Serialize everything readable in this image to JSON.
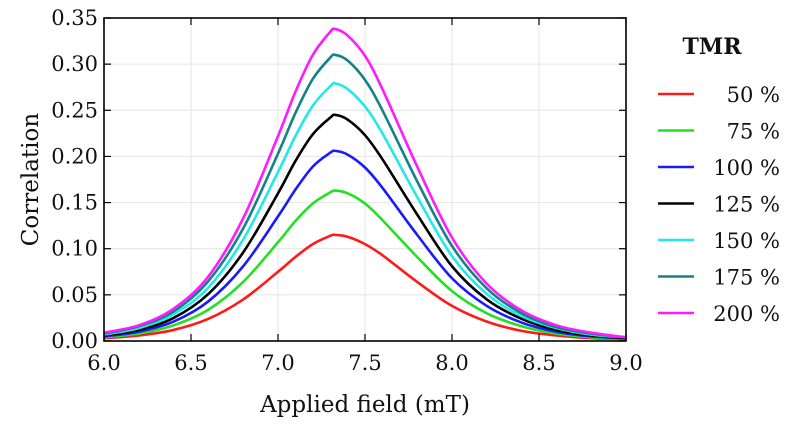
{
  "chart_data": {
    "type": "line",
    "xlabel": "Applied field (mT)",
    "ylabel": "Correlation",
    "xlim": [
      6.0,
      9.0
    ],
    "ylim": [
      0.0,
      0.35
    ],
    "xticks": [
      6.0,
      6.5,
      7.0,
      7.5,
      8.0,
      8.5,
      9.0
    ],
    "xtick_labels": [
      "6.0",
      "6.5",
      "7.0",
      "7.5",
      "8.0",
      "8.5",
      "9.0"
    ],
    "yticks": [
      0.0,
      0.05,
      0.1,
      0.15,
      0.2,
      0.25,
      0.3,
      0.35
    ],
    "ytick_labels": [
      "0.00",
      "0.05",
      "0.10",
      "0.15",
      "0.20",
      "0.25",
      "0.30",
      "0.35"
    ],
    "grid": true,
    "legend_title": "TMR",
    "legend_position": "right",
    "x": [
      6.0,
      6.2,
      6.4,
      6.6,
      6.8,
      7.0,
      7.1,
      7.2,
      7.3,
      7.33,
      7.4,
      7.5,
      7.6,
      7.8,
      8.0,
      8.2,
      8.4,
      8.6,
      8.8,
      9.0
    ],
    "series": [
      {
        "name": "50 %",
        "color": "#ff1a1a",
        "values": [
          0.003,
          0.006,
          0.012,
          0.024,
          0.045,
          0.075,
          0.091,
          0.105,
          0.114,
          0.115,
          0.113,
          0.105,
          0.093,
          0.064,
          0.038,
          0.021,
          0.011,
          0.006,
          0.003,
          0.002
        ]
      },
      {
        "name": "75 %",
        "color": "#22e022",
        "values": [
          0.004,
          0.008,
          0.017,
          0.034,
          0.064,
          0.107,
          0.13,
          0.149,
          0.161,
          0.163,
          0.16,
          0.149,
          0.131,
          0.091,
          0.054,
          0.03,
          0.016,
          0.008,
          0.004,
          0.002
        ]
      },
      {
        "name": "100 %",
        "color": "#1a1aff",
        "values": [
          0.005,
          0.01,
          0.021,
          0.043,
          0.081,
          0.135,
          0.164,
          0.189,
          0.204,
          0.206,
          0.202,
          0.188,
          0.166,
          0.115,
          0.068,
          0.038,
          0.02,
          0.01,
          0.005,
          0.003
        ]
      },
      {
        "name": "125 %",
        "color": "#000000",
        "values": [
          0.006,
          0.012,
          0.025,
          0.051,
          0.096,
          0.16,
          0.195,
          0.224,
          0.242,
          0.245,
          0.24,
          0.223,
          0.197,
          0.137,
          0.081,
          0.045,
          0.024,
          0.012,
          0.006,
          0.003
        ]
      },
      {
        "name": "150 %",
        "color": "#22e8e8",
        "values": [
          0.007,
          0.014,
          0.029,
          0.058,
          0.11,
          0.183,
          0.222,
          0.255,
          0.276,
          0.279,
          0.273,
          0.254,
          0.225,
          0.156,
          0.092,
          0.051,
          0.027,
          0.014,
          0.007,
          0.004
        ]
      },
      {
        "name": "175 %",
        "color": "#138383",
        "values": [
          0.008,
          0.016,
          0.032,
          0.065,
          0.122,
          0.203,
          0.247,
          0.284,
          0.307,
          0.31,
          0.304,
          0.283,
          0.25,
          0.173,
          0.103,
          0.057,
          0.03,
          0.015,
          0.008,
          0.004
        ]
      },
      {
        "name": "200 %",
        "color": "#ff1aff",
        "values": [
          0.009,
          0.017,
          0.035,
          0.07,
          0.133,
          0.222,
          0.27,
          0.31,
          0.335,
          0.338,
          0.331,
          0.309,
          0.273,
          0.189,
          0.112,
          0.062,
          0.033,
          0.017,
          0.009,
          0.004
        ]
      }
    ]
  }
}
